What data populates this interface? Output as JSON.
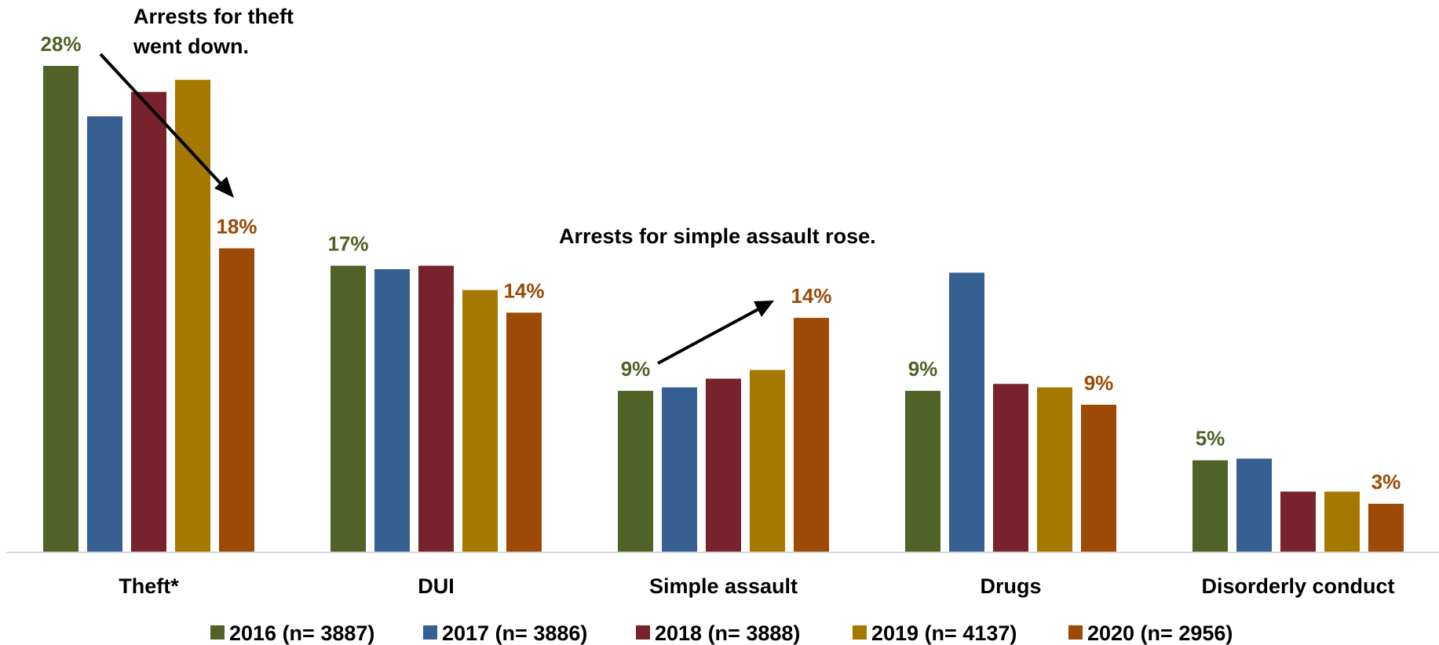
{
  "chart_data": {
    "type": "bar",
    "categories": [
      "Theft*",
      "DUI",
      "Simple assault",
      "Drugs",
      "Disorderly conduct"
    ],
    "series": [
      {
        "name": "2016 (n= 3887)",
        "color": "#4f6228",
        "values": [
          28,
          16.5,
          9.3,
          9.3,
          5.3
        ]
      },
      {
        "name": "2017 (n= 3886)",
        "color": "#376092",
        "values": [
          25.1,
          16.3,
          9.5,
          16.1,
          5.4
        ]
      },
      {
        "name": "2018 (n= 3888)",
        "color": "#77222d",
        "values": [
          26.5,
          16.5,
          10,
          9.7,
          3.5
        ]
      },
      {
        "name": "2019 (n= 4137)",
        "color": "#a57800",
        "values": [
          27.2,
          15.1,
          10.5,
          9.5,
          3.5
        ]
      },
      {
        "name": "2020 (n= 2956)",
        "color": "#9c4a06",
        "values": [
          17.5,
          13.8,
          13.5,
          8.5,
          2.8
        ]
      }
    ],
    "data_labels": [
      {
        "category": "Theft*",
        "series": "2016 (n= 3887)",
        "text": "28%"
      },
      {
        "category": "Theft*",
        "series": "2020 (n= 2956)",
        "text": "18%"
      },
      {
        "category": "DUI",
        "series": "2016 (n= 3887)",
        "text": "17%"
      },
      {
        "category": "DUI",
        "series": "2020 (n= 2956)",
        "text": "14%"
      },
      {
        "category": "Simple assault",
        "series": "2016 (n= 3887)",
        "text": "9%"
      },
      {
        "category": "Simple assault",
        "series": "2020 (n= 2956)",
        "text": "14%"
      },
      {
        "category": "Drugs",
        "series": "2016 (n= 3887)",
        "text": "9%"
      },
      {
        "category": "Drugs",
        "series": "2020 (n= 2956)",
        "text": "9%"
      },
      {
        "category": "Disorderly conduct",
        "series": "2016 (n= 3887)",
        "text": "5%"
      },
      {
        "category": "Disorderly conduct",
        "series": "2020 (n= 2956)",
        "text": "3%"
      }
    ],
    "annotations": [
      {
        "text_lines": [
          "Arrests for theft",
          "went down."
        ]
      },
      {
        "text_lines": [
          "Arrests for simple assault rose."
        ]
      }
    ],
    "ylim": [
      0,
      28
    ],
    "grid": false,
    "legend_position": "bottom"
  }
}
